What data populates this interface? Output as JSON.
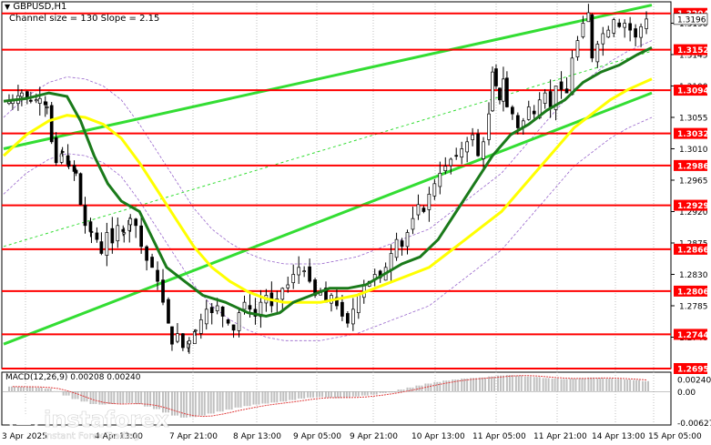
{
  "header": {
    "symbol": "GBPUSD,H1",
    "channel_info": "Channel size = 130 Slope = 2.15"
  },
  "macd": {
    "label": "MACD(12,26,9) 0.00208 0.00240",
    "axis_ticks": [
      "0.00240",
      "0.00",
      "-0.00627"
    ]
  },
  "logo": {
    "brand": "instaforex",
    "tagline": "Instant Forex Trading"
  },
  "chart_data": {
    "type": "candlestick",
    "price_axis": {
      "ylim": [
        1.2695,
        1.3218
      ],
      "ticks": [
        "1.3190",
        "1.3145",
        "1.3100",
        "1.3055",
        "1.3010",
        "1.2965",
        "1.2920",
        "1.2875",
        "1.2830",
        "1.2785",
        "1.2740"
      ]
    },
    "time_axis": {
      "labels": [
        "3 Apr 2025",
        "4 Apr 13:00",
        "7 Apr 21:00",
        "8 Apr 13:00",
        "9 Apr 05:00",
        "9 Apr 21:00",
        "10 Apr 13:00",
        "11 Apr 05:00",
        "11 Apr 21:00",
        "14 Apr 13:00",
        "15 Apr 05:00"
      ]
    },
    "current_price": "1.3196",
    "levels": [
      {
        "price": 1.3204,
        "label": "1.3204"
      },
      {
        "price": 1.3152,
        "label": "1.3152"
      },
      {
        "price": 1.3094,
        "label": "1.3094"
      },
      {
        "price": 1.3032,
        "label": "1.3032"
      },
      {
        "price": 1.2986,
        "label": "1.2986"
      },
      {
        "price": 1.2929,
        "label": "1.2929"
      },
      {
        "price": 1.2866,
        "label": "1.2866"
      },
      {
        "price": 1.2806,
        "label": "1.2806"
      },
      {
        "price": 1.2744,
        "label": "1.2744"
      },
      {
        "price": 1.2695,
        "label": "1.2695"
      }
    ],
    "close_path": [
      [
        0,
        1.3075
      ],
      [
        10,
        1.308
      ],
      [
        20,
        1.309
      ],
      [
        30,
        1.3078
      ],
      [
        40,
        1.3082
      ],
      [
        48,
        1.307
      ],
      [
        53,
        1.302
      ],
      [
        58,
        1.299
      ],
      [
        65,
        1.3005
      ],
      [
        72,
        1.2985
      ],
      [
        80,
        1.2975
      ],
      [
        85,
        1.293
      ],
      [
        90,
        1.29
      ],
      [
        97,
        1.289
      ],
      [
        103,
        1.288
      ],
      [
        108,
        1.286
      ],
      [
        114,
        1.289
      ],
      [
        120,
        1.2875
      ],
      [
        126,
        1.29
      ],
      [
        133,
        1.289
      ],
      [
        140,
        1.291
      ],
      [
        146,
        1.29
      ],
      [
        152,
        1.287
      ],
      [
        158,
        1.285
      ],
      [
        164,
        1.284
      ],
      [
        170,
        1.282
      ],
      [
        176,
        1.279
      ],
      [
        182,
        1.276
      ],
      [
        186,
        1.273
      ],
      [
        192,
        1.2745
      ],
      [
        198,
        1.2725
      ],
      [
        205,
        1.2735
      ],
      [
        212,
        1.275
      ],
      [
        218,
        1.2765
      ],
      [
        224,
        1.278
      ],
      [
        230,
        1.2775
      ],
      [
        236,
        1.2785
      ],
      [
        242,
        1.277
      ],
      [
        248,
        1.276
      ],
      [
        254,
        1.275
      ],
      [
        260,
        1.2775
      ],
      [
        266,
        1.279
      ],
      [
        272,
        1.278
      ],
      [
        278,
        1.277
      ],
      [
        284,
        1.279
      ],
      [
        290,
        1.28
      ],
      [
        296,
        1.2785
      ],
      [
        302,
        1.2795
      ],
      [
        308,
        1.281
      ],
      [
        314,
        1.2815
      ],
      [
        320,
        1.283
      ],
      [
        326,
        1.284
      ],
      [
        332,
        1.2835
      ],
      [
        338,
        1.282
      ],
      [
        344,
        1.28
      ],
      [
        350,
        1.2805
      ],
      [
        356,
        1.279
      ],
      [
        362,
        1.28
      ],
      [
        368,
        1.2785
      ],
      [
        374,
        1.277
      ],
      [
        380,
        1.276
      ],
      [
        386,
        1.278
      ],
      [
        392,
        1.28
      ],
      [
        398,
        1.2815
      ],
      [
        404,
        1.282
      ],
      [
        410,
        1.283
      ],
      [
        416,
        1.2825
      ],
      [
        422,
        1.284
      ],
      [
        428,
        1.286
      ],
      [
        434,
        1.288
      ],
      [
        440,
        1.287
      ],
      [
        446,
        1.289
      ],
      [
        452,
        1.291
      ],
      [
        458,
        1.293
      ],
      [
        464,
        1.292
      ],
      [
        470,
        1.2945
      ],
      [
        476,
        1.296
      ],
      [
        482,
        1.2975
      ],
      [
        488,
        1.2985
      ],
      [
        494,
        1.2995
      ],
      [
        500,
        1.3
      ],
      [
        506,
        1.301
      ],
      [
        512,
        1.302
      ],
      [
        518,
        1.303
      ],
      [
        524,
        1.3
      ],
      [
        530,
        1.302
      ],
      [
        536,
        1.306
      ],
      [
        540,
        1.312
      ],
      [
        544,
        1.31
      ],
      [
        548,
        1.308
      ],
      [
        552,
        1.311
      ],
      [
        556,
        1.307
      ],
      [
        562,
        1.306
      ],
      [
        568,
        1.304
      ],
      [
        574,
        1.305
      ],
      [
        580,
        1.307
      ],
      [
        586,
        1.306
      ],
      [
        592,
        1.308
      ],
      [
        598,
        1.309
      ],
      [
        604,
        1.307
      ],
      [
        610,
        1.31
      ],
      [
        616,
        1.3095
      ],
      [
        622,
        1.309
      ],
      [
        628,
        1.314
      ],
      [
        634,
        1.3165
      ],
      [
        640,
        1.319
      ],
      [
        646,
        1.3205
      ],
      [
        650,
        1.314
      ],
      [
        656,
        1.316
      ],
      [
        662,
        1.3175
      ],
      [
        668,
        1.318
      ],
      [
        674,
        1.3195
      ],
      [
        680,
        1.3185
      ],
      [
        686,
        1.319
      ],
      [
        692,
        1.318
      ],
      [
        698,
        1.317
      ],
      [
        704,
        1.3185
      ],
      [
        710,
        1.3196
      ]
    ],
    "ma_fast": [
      [
        0,
        1.3078
      ],
      [
        25,
        1.3082
      ],
      [
        50,
        1.309
      ],
      [
        70,
        1.3085
      ],
      [
        85,
        1.305
      ],
      [
        100,
        1.3
      ],
      [
        115,
        1.296
      ],
      [
        130,
        1.2935
      ],
      [
        150,
        1.292
      ],
      [
        165,
        1.288
      ],
      [
        180,
        1.284
      ],
      [
        200,
        1.282
      ],
      [
        220,
        1.28
      ],
      [
        245,
        1.279
      ],
      [
        270,
        1.2775
      ],
      [
        290,
        1.277
      ],
      [
        305,
        1.2775
      ],
      [
        320,
        1.279
      ],
      [
        340,
        1.28
      ],
      [
        360,
        1.281
      ],
      [
        380,
        1.281
      ],
      [
        400,
        1.2815
      ],
      [
        420,
        1.283
      ],
      [
        440,
        1.2845
      ],
      [
        460,
        1.2855
      ],
      [
        480,
        1.288
      ],
      [
        500,
        1.292
      ],
      [
        520,
        1.296
      ],
      [
        540,
        1.3
      ],
      [
        560,
        1.303
      ],
      [
        580,
        1.3045
      ],
      [
        600,
        1.3065
      ],
      [
        620,
        1.308
      ],
      [
        640,
        1.3105
      ],
      [
        660,
        1.312
      ],
      [
        680,
        1.313
      ],
      [
        700,
        1.3145
      ],
      [
        716,
        1.3155
      ]
    ],
    "ma_slow": [
      [
        0,
        1.3
      ],
      [
        25,
        1.303
      ],
      [
        50,
        1.305
      ],
      [
        70,
        1.3058
      ],
      [
        90,
        1.3055
      ],
      [
        110,
        1.3045
      ],
      [
        130,
        1.3025
      ],
      [
        150,
        1.299
      ],
      [
        170,
        1.295
      ],
      [
        190,
        1.291
      ],
      [
        210,
        1.287
      ],
      [
        230,
        1.284
      ],
      [
        250,
        1.282
      ],
      [
        270,
        1.2805
      ],
      [
        290,
        1.2795
      ],
      [
        310,
        1.279
      ],
      [
        330,
        1.279
      ],
      [
        350,
        1.279
      ],
      [
        370,
        1.2795
      ],
      [
        390,
        1.28
      ],
      [
        410,
        1.281
      ],
      [
        430,
        1.282
      ],
      [
        450,
        1.283
      ],
      [
        470,
        1.284
      ],
      [
        490,
        1.286
      ],
      [
        510,
        1.288
      ],
      [
        530,
        1.29
      ],
      [
        550,
        1.292
      ],
      [
        570,
        1.295
      ],
      [
        590,
        1.298
      ],
      [
        610,
        1.301
      ],
      [
        630,
        1.304
      ],
      [
        650,
        1.306
      ],
      [
        670,
        1.308
      ],
      [
        690,
        1.3095
      ],
      [
        716,
        1.311
      ]
    ],
    "channel": {
      "upper": [
        [
          0,
          1.301
        ],
        [
          716,
          1.3216
        ]
      ],
      "middle": [
        [
          0,
          1.287
        ],
        [
          716,
          1.315
        ]
      ],
      "lower": [
        [
          0,
          1.273
        ],
        [
          716,
          1.309
        ]
      ]
    },
    "macd_histogram": [
      [
        10,
        0.001
      ],
      [
        20,
        0.00095
      ],
      [
        30,
        0.0009
      ],
      [
        40,
        0.0008
      ],
      [
        50,
        0.0006
      ],
      [
        60,
        0.0001
      ],
      [
        70,
        -0.0008
      ],
      [
        80,
        -0.0015
      ],
      [
        90,
        -0.002
      ],
      [
        100,
        -0.0025
      ],
      [
        110,
        -0.0026
      ],
      [
        120,
        -0.0025
      ],
      [
        130,
        -0.0024
      ],
      [
        140,
        -0.0023
      ],
      [
        150,
        -0.0025
      ],
      [
        160,
        -0.003
      ],
      [
        170,
        -0.0035
      ],
      [
        180,
        -0.0042
      ],
      [
        190,
        -0.0048
      ],
      [
        200,
        -0.0052
      ],
      [
        210,
        -0.0051
      ],
      [
        220,
        -0.0048
      ],
      [
        230,
        -0.0044
      ],
      [
        240,
        -0.004
      ],
      [
        250,
        -0.0036
      ],
      [
        260,
        -0.0032
      ],
      [
        270,
        -0.0029
      ],
      [
        280,
        -0.0026
      ],
      [
        290,
        -0.0024
      ],
      [
        300,
        -0.0022
      ],
      [
        310,
        -0.002
      ],
      [
        320,
        -0.0017
      ],
      [
        330,
        -0.0014
      ],
      [
        340,
        -0.0012
      ],
      [
        350,
        -0.0011
      ],
      [
        360,
        -0.0012
      ],
      [
        370,
        -0.0013
      ],
      [
        380,
        -0.0012
      ],
      [
        390,
        -0.001
      ],
      [
        400,
        -0.0008
      ],
      [
        410,
        -0.0006
      ],
      [
        420,
        -0.0003
      ],
      [
        430,
        0.0
      ],
      [
        440,
        0.0004
      ],
      [
        450,
        0.0008
      ],
      [
        460,
        0.0012
      ],
      [
        470,
        0.0016
      ],
      [
        480,
        0.0019
      ],
      [
        490,
        0.0022
      ],
      [
        500,
        0.0024
      ],
      [
        510,
        0.0026
      ],
      [
        520,
        0.0027
      ],
      [
        530,
        0.0028
      ],
      [
        540,
        0.003
      ],
      [
        550,
        0.0032
      ],
      [
        560,
        0.0033
      ],
      [
        570,
        0.0032
      ],
      [
        580,
        0.003
      ],
      [
        590,
        0.0029
      ],
      [
        600,
        0.0027
      ],
      [
        610,
        0.0026
      ],
      [
        620,
        0.0025
      ],
      [
        630,
        0.0026
      ],
      [
        640,
        0.0027
      ],
      [
        650,
        0.0028
      ],
      [
        660,
        0.0027
      ],
      [
        670,
        0.0026
      ],
      [
        680,
        0.0025
      ],
      [
        690,
        0.0024
      ],
      [
        700,
        0.0023
      ],
      [
        710,
        0.00208
      ]
    ]
  },
  "colors": {
    "level_line": "#ff0000",
    "level_label_bg": "#ff0000",
    "candle": "#000000",
    "ma_fast": "#1a7a1a",
    "ma_slow": "#ffff00",
    "channel": "#33dd33",
    "envelope": "#9966cc",
    "macd_hist": "#c0c0c0",
    "macd_signal": "#e04040",
    "grid": "#bfbfbf"
  }
}
